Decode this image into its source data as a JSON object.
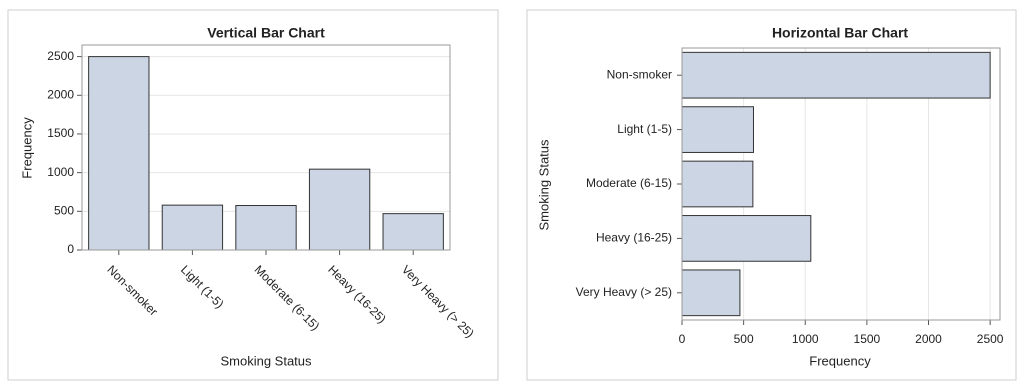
{
  "chart_data": [
    {
      "type": "bar",
      "orientation": "vertical",
      "title": "Vertical Bar Chart",
      "x_label": "Smoking Status",
      "y_label": "Frequency",
      "categories": [
        "Non-smoker",
        "Light (1-5)",
        "Moderate (6-15)",
        "Heavy (16-25)",
        "Very Heavy (> 25)"
      ],
      "values": [
        2500,
        580,
        575,
        1045,
        470
      ],
      "color": "#cbd5e4",
      "ylim": [
        0,
        2650
      ],
      "yticks": [
        0,
        500,
        1000,
        1500,
        2000,
        2500
      ],
      "grid": true
    },
    {
      "type": "bar",
      "orientation": "horizontal",
      "title": "Horizontal Bar Chart",
      "x_label": "Frequency",
      "y_label": "Smoking Status",
      "categories": [
        "Non-smoker",
        "Light (1-5)",
        "Moderate (6-15)",
        "Heavy (16-25)",
        "Very Heavy (> 25)"
      ],
      "values": [
        2500,
        580,
        575,
        1045,
        470
      ],
      "color": "#cbd5e4",
      "xlim": [
        0,
        2580
      ],
      "xticks": [
        0,
        500,
        1000,
        1500,
        2000,
        2500
      ],
      "grid": true
    }
  ]
}
